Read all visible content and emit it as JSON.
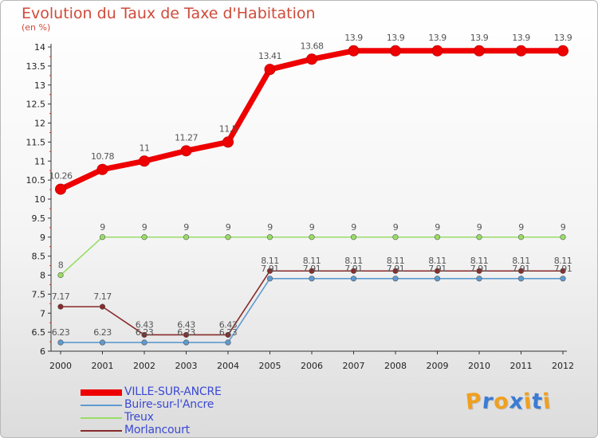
{
  "chart_data": {
    "type": "line",
    "title": "Evolution du Taux de Taxe d'Habitation",
    "subtitle": "(en %)",
    "x": [
      "2000",
      "2001",
      "2002",
      "2003",
      "2004",
      "2005",
      "2006",
      "2007",
      "2008",
      "2009",
      "2010",
      "2011",
      "2012"
    ],
    "ylim": [
      6,
      14
    ],
    "yticks": [
      "6",
      "6.5",
      "7",
      "7.5",
      "8",
      "8.5",
      "9",
      "9.5",
      "10",
      "10.5",
      "11",
      "11.5",
      "12",
      "12.5",
      "13",
      "13.5",
      "14"
    ],
    "grid": false,
    "legend": "bottom-left",
    "series": [
      {
        "name": "VILLE-SUR-ANCRE",
        "color": "#ee0000",
        "values": [
          10.26,
          10.78,
          11,
          11.27,
          11.5,
          13.41,
          13.68,
          13.9,
          13.9,
          13.9,
          13.9,
          13.9,
          13.9
        ],
        "labels": [
          "10.26",
          "10.78",
          "11",
          "11.27",
          "11.5",
          "13.41",
          "13.68",
          "13.9",
          "13.9",
          "13.9",
          "13.9",
          "13.9",
          "13.9"
        ]
      },
      {
        "name": "Buire-sur-l'Ancre",
        "color": "#5e9bd0",
        "values": [
          6.23,
          6.23,
          6.23,
          6.23,
          6.23,
          7.91,
          7.91,
          7.91,
          7.91,
          7.91,
          7.91,
          7.91,
          7.91
        ],
        "labels": [
          "6.23",
          "6.23",
          "6.23",
          "6.23",
          "6.23",
          "7.91",
          "7.91",
          "7.91",
          "7.91",
          "7.91",
          "7.91",
          "7.91",
          "7.91"
        ]
      },
      {
        "name": "Treux",
        "color": "#99dd66",
        "values": [
          8,
          9,
          9,
          9,
          9,
          9,
          9,
          9,
          9,
          9,
          9,
          9,
          9
        ],
        "labels": [
          "8",
          "9",
          "9",
          "9",
          "9",
          "9",
          "9",
          "9",
          "9",
          "9",
          "9",
          "9",
          "9"
        ]
      },
      {
        "name": "Morlancourt",
        "color": "#882a2a",
        "values": [
          7.17,
          7.17,
          6.43,
          6.43,
          6.43,
          8.11,
          8.11,
          8.11,
          8.11,
          8.11,
          8.11,
          8.11,
          8.11
        ],
        "labels": [
          "7.17",
          "7.17",
          "6.43",
          "6.43",
          "6.43",
          "8.11",
          "8.11",
          "8.11",
          "8.11",
          "8.11",
          "8.11",
          "8.11",
          "8.11"
        ]
      }
    ]
  },
  "brand": {
    "letters": [
      "P",
      "r",
      "o",
      "x",
      "i",
      "t",
      "i"
    ],
    "colors": [
      "#f0a020",
      "#3a7bd5",
      "#f0a020",
      "#3a7bd5",
      "#f0a020",
      "#3a7bd5",
      "#f0a020"
    ]
  }
}
